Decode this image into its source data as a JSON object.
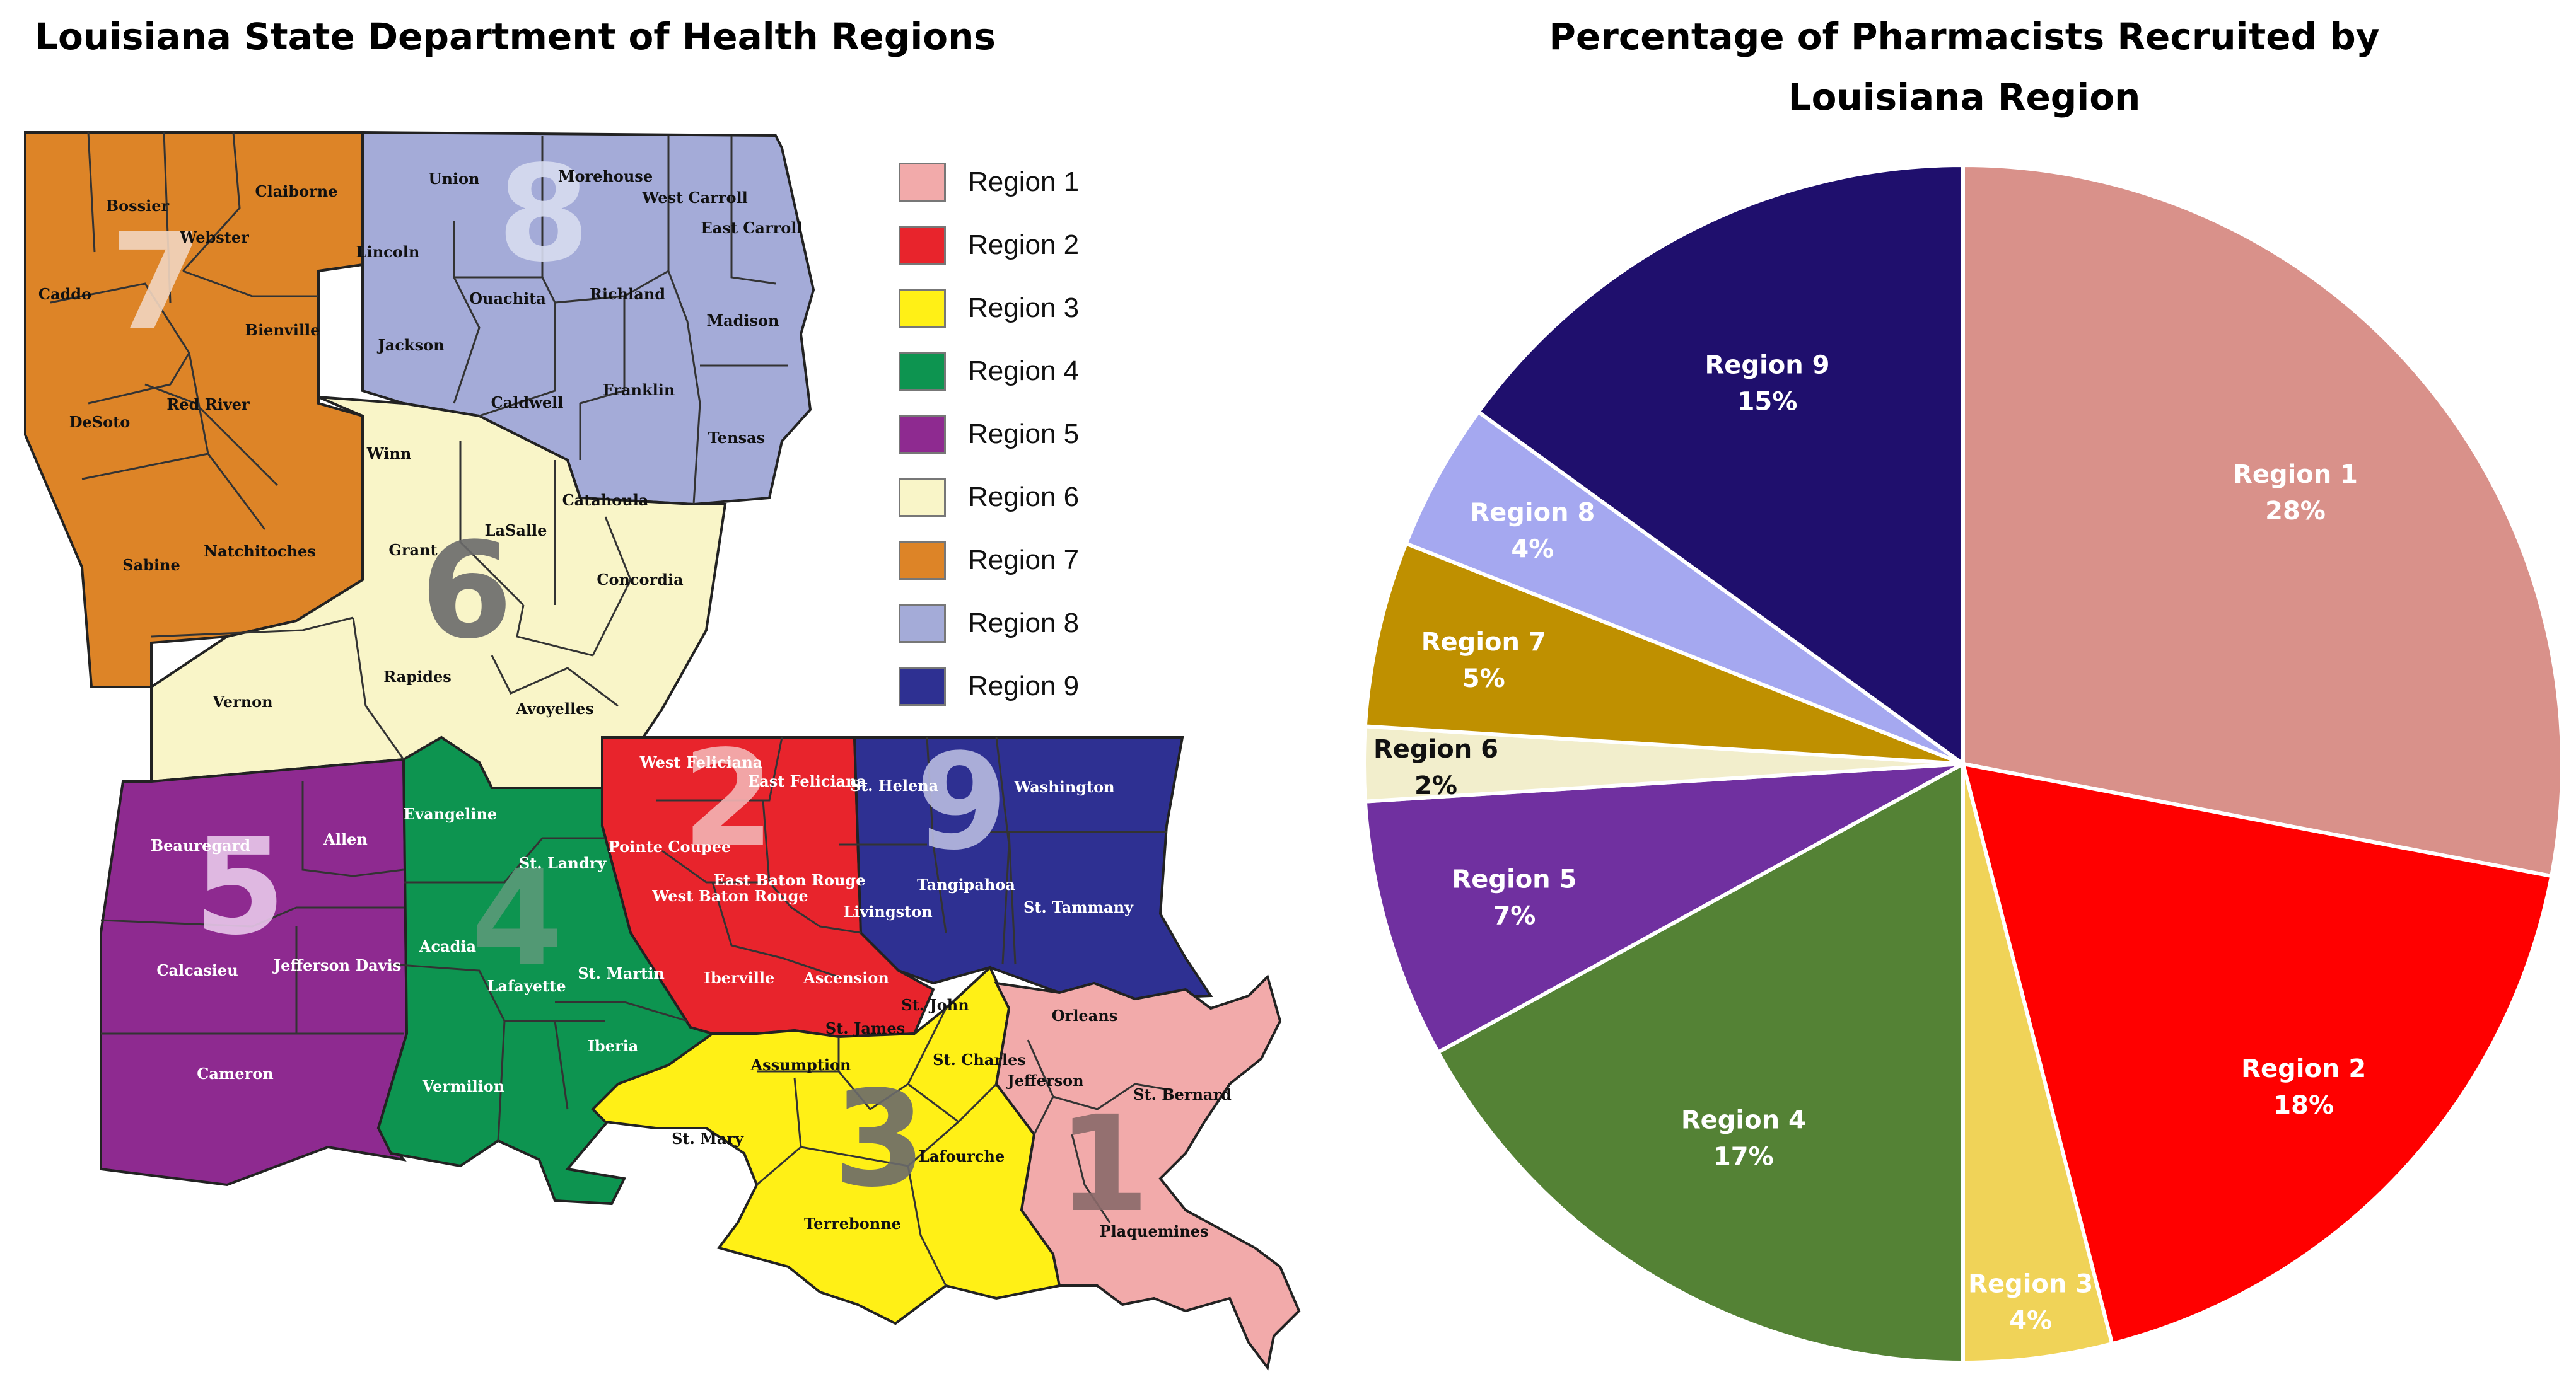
{
  "map": {
    "title": "Louisiana State Department of Health Regions",
    "regions": [
      {
        "number": "1",
        "label": "Region 1",
        "color": "#f2aaaa"
      },
      {
        "number": "2",
        "label": "Region 2",
        "color": "#e8242c"
      },
      {
        "number": "3",
        "label": "Region 3",
        "color": "#fff016"
      },
      {
        "number": "4",
        "label": "Region 4",
        "color": "#0d9450"
      },
      {
        "number": "5",
        "label": "Region 5",
        "color": "#8e2a90"
      },
      {
        "number": "6",
        "label": "Region 6",
        "color": "#f9f5c8"
      },
      {
        "number": "7",
        "label": "Region 7",
        "color": "#dd8427"
      },
      {
        "number": "8",
        "label": "Region 8",
        "color": "#a4abd8"
      },
      {
        "number": "9",
        "label": "Region 9",
        "color": "#2e3092"
      }
    ],
    "parishes": [
      "Bossier",
      "Claiborne",
      "Webster",
      "Caddo",
      "Bienville",
      "Red River",
      "DeSoto",
      "Sabine",
      "Natchitoches",
      "Union",
      "Morehouse",
      "West Carroll",
      "East Carroll",
      "Lincoln",
      "Ouachita",
      "Richland",
      "Madison",
      "Jackson",
      "Caldwell",
      "Franklin",
      "Tensas",
      "Winn",
      "Grant",
      "LaSalle",
      "Catahoula",
      "Concordia",
      "Rapides",
      "Vernon",
      "Avoyelles",
      "West Feliciana",
      "East Feliciana",
      "Pointe Coupee",
      "West Baton Rouge",
      "East Baton Rouge",
      "Iberville",
      "Ascension",
      "St. Helena",
      "Washington",
      "Tangipahoa",
      "Livingston",
      "St. Tammany",
      "Beauregard",
      "Allen",
      "Calcasieu",
      "Jefferson Davis",
      "Cameron",
      "Evangeline",
      "St. Landry",
      "Acadia",
      "Lafayette",
      "St. Martin",
      "Iberia",
      "Vermilion",
      "St. James",
      "St. John",
      "St. Charles",
      "Assumption",
      "St. Mary",
      "Lafourche",
      "Terrebonne",
      "Orleans",
      "St. Bernard",
      "Jefferson",
      "Plaquemines"
    ]
  },
  "chart_data": {
    "type": "pie",
    "title": "Percentage of Pharmacists Recruited by Louisiana Region",
    "slices": [
      {
        "label": "Region 1",
        "value": 28,
        "pct_label": "28%",
        "color": "#d9918a"
      },
      {
        "label": "Region 2",
        "value": 18,
        "pct_label": "18%",
        "color": "#ff0000"
      },
      {
        "label": "Region 3",
        "value": 4,
        "pct_label": "4%",
        "color": "#f0d358"
      },
      {
        "label": "Region 4",
        "value": 17,
        "pct_label": "17%",
        "color": "#548235"
      },
      {
        "label": "Region 5",
        "value": 7,
        "pct_label": "7%",
        "color": "#7030a0"
      },
      {
        "label": "Region 6",
        "value": 2,
        "pct_label": "2%",
        "color": "#f2eecc"
      },
      {
        "label": "Region 7",
        "value": 5,
        "pct_label": "5%",
        "color": "#bf9000"
      },
      {
        "label": "Region 8",
        "value": 4,
        "pct_label": "4%",
        "color": "#a5a8f0"
      },
      {
        "label": "Region 9",
        "value": 15,
        "pct_label": "15%",
        "color": "#1f0f6d"
      }
    ]
  }
}
